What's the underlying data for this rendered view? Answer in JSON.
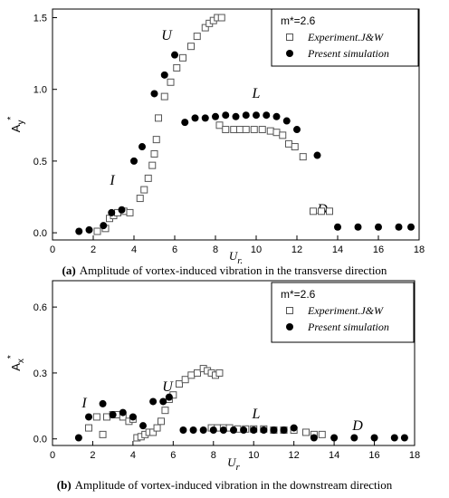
{
  "chart_data": [
    {
      "type": "scatter",
      "caption_tag": "(a)",
      "caption": "Amplitude of vortex-induced vibration in the transverse direction",
      "xlabel": "U",
      "xlabel_sub": "r.",
      "ylabel": "A",
      "ylabel_sub": "y",
      "ylabel_sup": "*",
      "legend_title": "m*=2.6",
      "legend": "top-right",
      "annotations": [
        "U",
        "L",
        "I",
        "D"
      ],
      "xlim": [
        0,
        18
      ],
      "xticks": [
        0,
        2,
        4,
        6,
        8,
        10,
        12,
        14,
        16,
        18
      ],
      "ylim": [
        -0.05,
        1.56
      ],
      "yticks": [
        {
          "value": 0,
          "label": "0.0"
        },
        0.5,
        {
          "value": 1,
          "label": "1.0"
        },
        1.5
      ],
      "series": [
        {
          "name": "Experiment.J&W",
          "color": "#555555",
          "marker": "square",
          "x": [
            2.2,
            2.6,
            2.8,
            3.0,
            3.2,
            3.5,
            3.8,
            4.3,
            4.5,
            4.7,
            4.9,
            5.0,
            5.1,
            5.2,
            5.5,
            5.8,
            6.1,
            6.4,
            6.8,
            7.1,
            7.5,
            7.7,
            7.9,
            8.1,
            8.3,
            8.2,
            8.5,
            8.9,
            9.2,
            9.5,
            9.9,
            10.3,
            10.7,
            11.0,
            11.3,
            11.6,
            11.9,
            12.3,
            12.8,
            13.2,
            13.6
          ],
          "values": [
            0.01,
            0.03,
            0.1,
            0.12,
            0.14,
            0.15,
            0.14,
            0.24,
            0.3,
            0.38,
            0.47,
            0.55,
            0.65,
            0.8,
            0.95,
            1.05,
            1.15,
            1.22,
            1.3,
            1.37,
            1.43,
            1.46,
            1.48,
            1.5,
            1.5,
            0.75,
            0.72,
            0.72,
            0.72,
            0.72,
            0.72,
            0.72,
            0.71,
            0.7,
            0.68,
            0.62,
            0.6,
            0.53,
            0.15,
            0.15,
            0.15
          ]
        },
        {
          "name": "Present simulation",
          "color": "#000000",
          "marker": "circle",
          "x": [
            1.3,
            1.8,
            2.5,
            2.9,
            3.4,
            4.0,
            4.4,
            5.0,
            5.5,
            6.0,
            6.5,
            7.0,
            7.5,
            8.0,
            8.5,
            9.0,
            9.5,
            10.0,
            10.5,
            11.0,
            11.5,
            12.0,
            13.0,
            14.0,
            15.0,
            16.0,
            17.0,
            17.6
          ],
          "values": [
            0.01,
            0.02,
            0.05,
            0.14,
            0.16,
            0.5,
            0.6,
            0.97,
            1.1,
            1.24,
            0.77,
            0.8,
            0.8,
            0.81,
            0.82,
            0.81,
            0.82,
            0.82,
            0.82,
            0.81,
            0.78,
            0.72,
            0.54,
            0.04,
            0.04,
            0.04,
            0.04,
            0.04
          ]
        }
      ]
    },
    {
      "type": "scatter",
      "caption_tag": "(b)",
      "caption": "Amplitude of vortex-induced vibration in the downstream direction",
      "xlabel": "U",
      "xlabel_sub": "r",
      "ylabel": "A",
      "ylabel_sub": "x",
      "ylabel_sup": "*",
      "legend_title": "m*=2.6",
      "legend": "top-right",
      "annotations": [
        "I",
        "U",
        "L",
        "D"
      ],
      "xlim": [
        0,
        18
      ],
      "xticks": [
        0,
        2,
        4,
        6,
        8,
        10,
        12,
        14,
        16,
        18
      ],
      "ylim": [
        -0.03,
        0.72
      ],
      "yticks": [
        {
          "value": 0,
          "label": "0.0"
        },
        0.3,
        0.6
      ],
      "series": [
        {
          "name": "Experiment.J&W",
          "color": "#555555",
          "marker": "square",
          "x": [
            1.8,
            2.2,
            2.5,
            2.7,
            3.0,
            3.2,
            3.5,
            3.8,
            4.0,
            4.2,
            4.4,
            4.6,
            4.8,
            5.0,
            5.2,
            5.4,
            5.6,
            5.8,
            6.0,
            6.3,
            6.6,
            6.9,
            7.2,
            7.5,
            7.7,
            7.9,
            8.1,
            8.3,
            7.9,
            8.2,
            8.5,
            8.8,
            9.2,
            9.6,
            10.0,
            10.5,
            11.0,
            11.5,
            12.0,
            12.6,
            13.0,
            13.4
          ],
          "values": [
            0.05,
            0.1,
            0.02,
            0.1,
            0.11,
            0.11,
            0.1,
            0.08,
            0.09,
            0.005,
            0.01,
            0.02,
            0.03,
            0.03,
            0.05,
            0.08,
            0.13,
            0.18,
            0.2,
            0.25,
            0.27,
            0.29,
            0.3,
            0.32,
            0.31,
            0.3,
            0.29,
            0.3,
            0.05,
            0.05,
            0.05,
            0.05,
            0.045,
            0.045,
            0.045,
            0.045,
            0.04,
            0.04,
            0.04,
            0.03,
            0.02,
            0.02
          ]
        },
        {
          "name": "Present simulation",
          "color": "#000000",
          "marker": "circle",
          "x": [
            1.3,
            1.8,
            2.5,
            3.0,
            3.5,
            4.0,
            4.5,
            5.0,
            5.5,
            5.8,
            6.5,
            7.0,
            7.5,
            8.0,
            8.5,
            9.0,
            9.5,
            10.0,
            10.5,
            11.0,
            11.5,
            12.0,
            13.0,
            14.0,
            15.0,
            16.0,
            17.0,
            17.5
          ],
          "values": [
            0.005,
            0.1,
            0.16,
            0.11,
            0.12,
            0.1,
            0.06,
            0.17,
            0.17,
            0.19,
            0.04,
            0.04,
            0.04,
            0.04,
            0.04,
            0.04,
            0.04,
            0.04,
            0.04,
            0.04,
            0.04,
            0.05,
            0.005,
            0.005,
            0.005,
            0.005,
            0.005,
            0.005
          ]
        }
      ]
    }
  ]
}
